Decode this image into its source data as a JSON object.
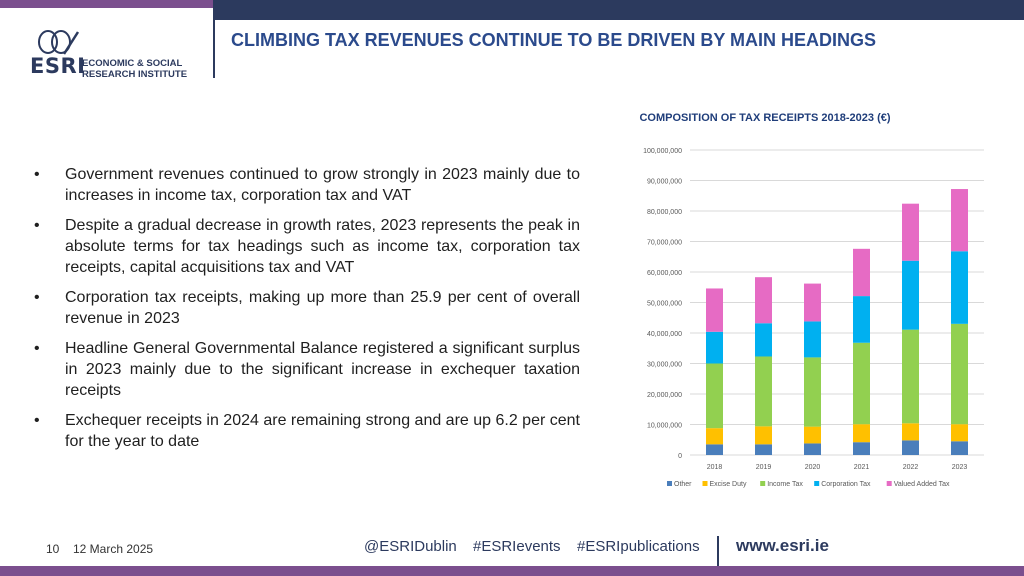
{
  "colors": {
    "navy": "#2c3a5e",
    "purple": "#7b4f8e",
    "title_blue": "#2b4a8c"
  },
  "header": {
    "title": "CLIMBING TAX REVENUES CONTINUE TO BE DRIVEN BY MAIN HEADINGS"
  },
  "logo": {
    "acronym": "ESRI",
    "line1": "ECONOMIC & SOCIAL",
    "line2": "RESEARCH INSTITUTE",
    "icon": "esri-swirl-logo"
  },
  "bullets": [
    "Government revenues continued to grow strongly in 2023 mainly due to increases in income tax, corporation tax and VAT",
    "Despite a gradual decrease in growth rates, 2023 represents the peak in absolute terms for tax headings such as income tax, corporation tax receipts, capital acquisitions tax and VAT",
    "Corporation tax receipts, making up more than 25.9 per cent of overall revenue in 2023",
    "Headline General Governmental Balance registered a significant surplus in 2023 mainly due to the significant increase in exchequer taxation receipts",
    "Exchequer receipts in 2024 are remaining strong and are up 6.2 per cent for the year to date"
  ],
  "bullet_symbol": "•",
  "chart_data": {
    "type": "bar",
    "stacked": true,
    "title": "COMPOSITION OF TAX RECEIPTS 2018-2023 (€)",
    "categories": [
      "2018",
      "2019",
      "2020",
      "2021",
      "2022",
      "2023"
    ],
    "series": [
      {
        "name": "Other",
        "color": "#4a7ebb",
        "values": [
          3500000,
          3500000,
          3800000,
          4200000,
          4800000,
          4500000
        ]
      },
      {
        "name": "Excise Duty",
        "color": "#ffc000",
        "values": [
          5300000,
          5900000,
          5500000,
          5900000,
          5600000,
          5600000
        ]
      },
      {
        "name": "Income Tax",
        "color": "#92d050",
        "values": [
          21200000,
          22900000,
          22700000,
          26700000,
          30700000,
          32900000
        ]
      },
      {
        "name": "Corporation Tax",
        "color": "#00b0f0",
        "values": [
          10400000,
          10900000,
          11800000,
          15300000,
          22600000,
          23800000
        ]
      },
      {
        "name": "Valued Added Tax",
        "color": "#e66bc4",
        "values": [
          14200000,
          15100000,
          12400000,
          15500000,
          18700000,
          20400000
        ]
      }
    ],
    "ylim": [
      0,
      100000000
    ],
    "ytick_step": 10000000,
    "ytick_labels": [
      "0",
      "10,000,000",
      "20,000,000",
      "30,000,000",
      "40,000,000",
      "50,000,000",
      "60,000,000",
      "70,000,000",
      "80,000,000",
      "90,000,000",
      "100,000,000"
    ],
    "grid": true,
    "legend_position": "bottom"
  },
  "footer": {
    "slide_number": "10",
    "date": "12 March 2025",
    "social": [
      "@ESRIDublin",
      "#ESRIevents",
      "#ESRIpublications"
    ],
    "website": "www.esri.ie"
  }
}
